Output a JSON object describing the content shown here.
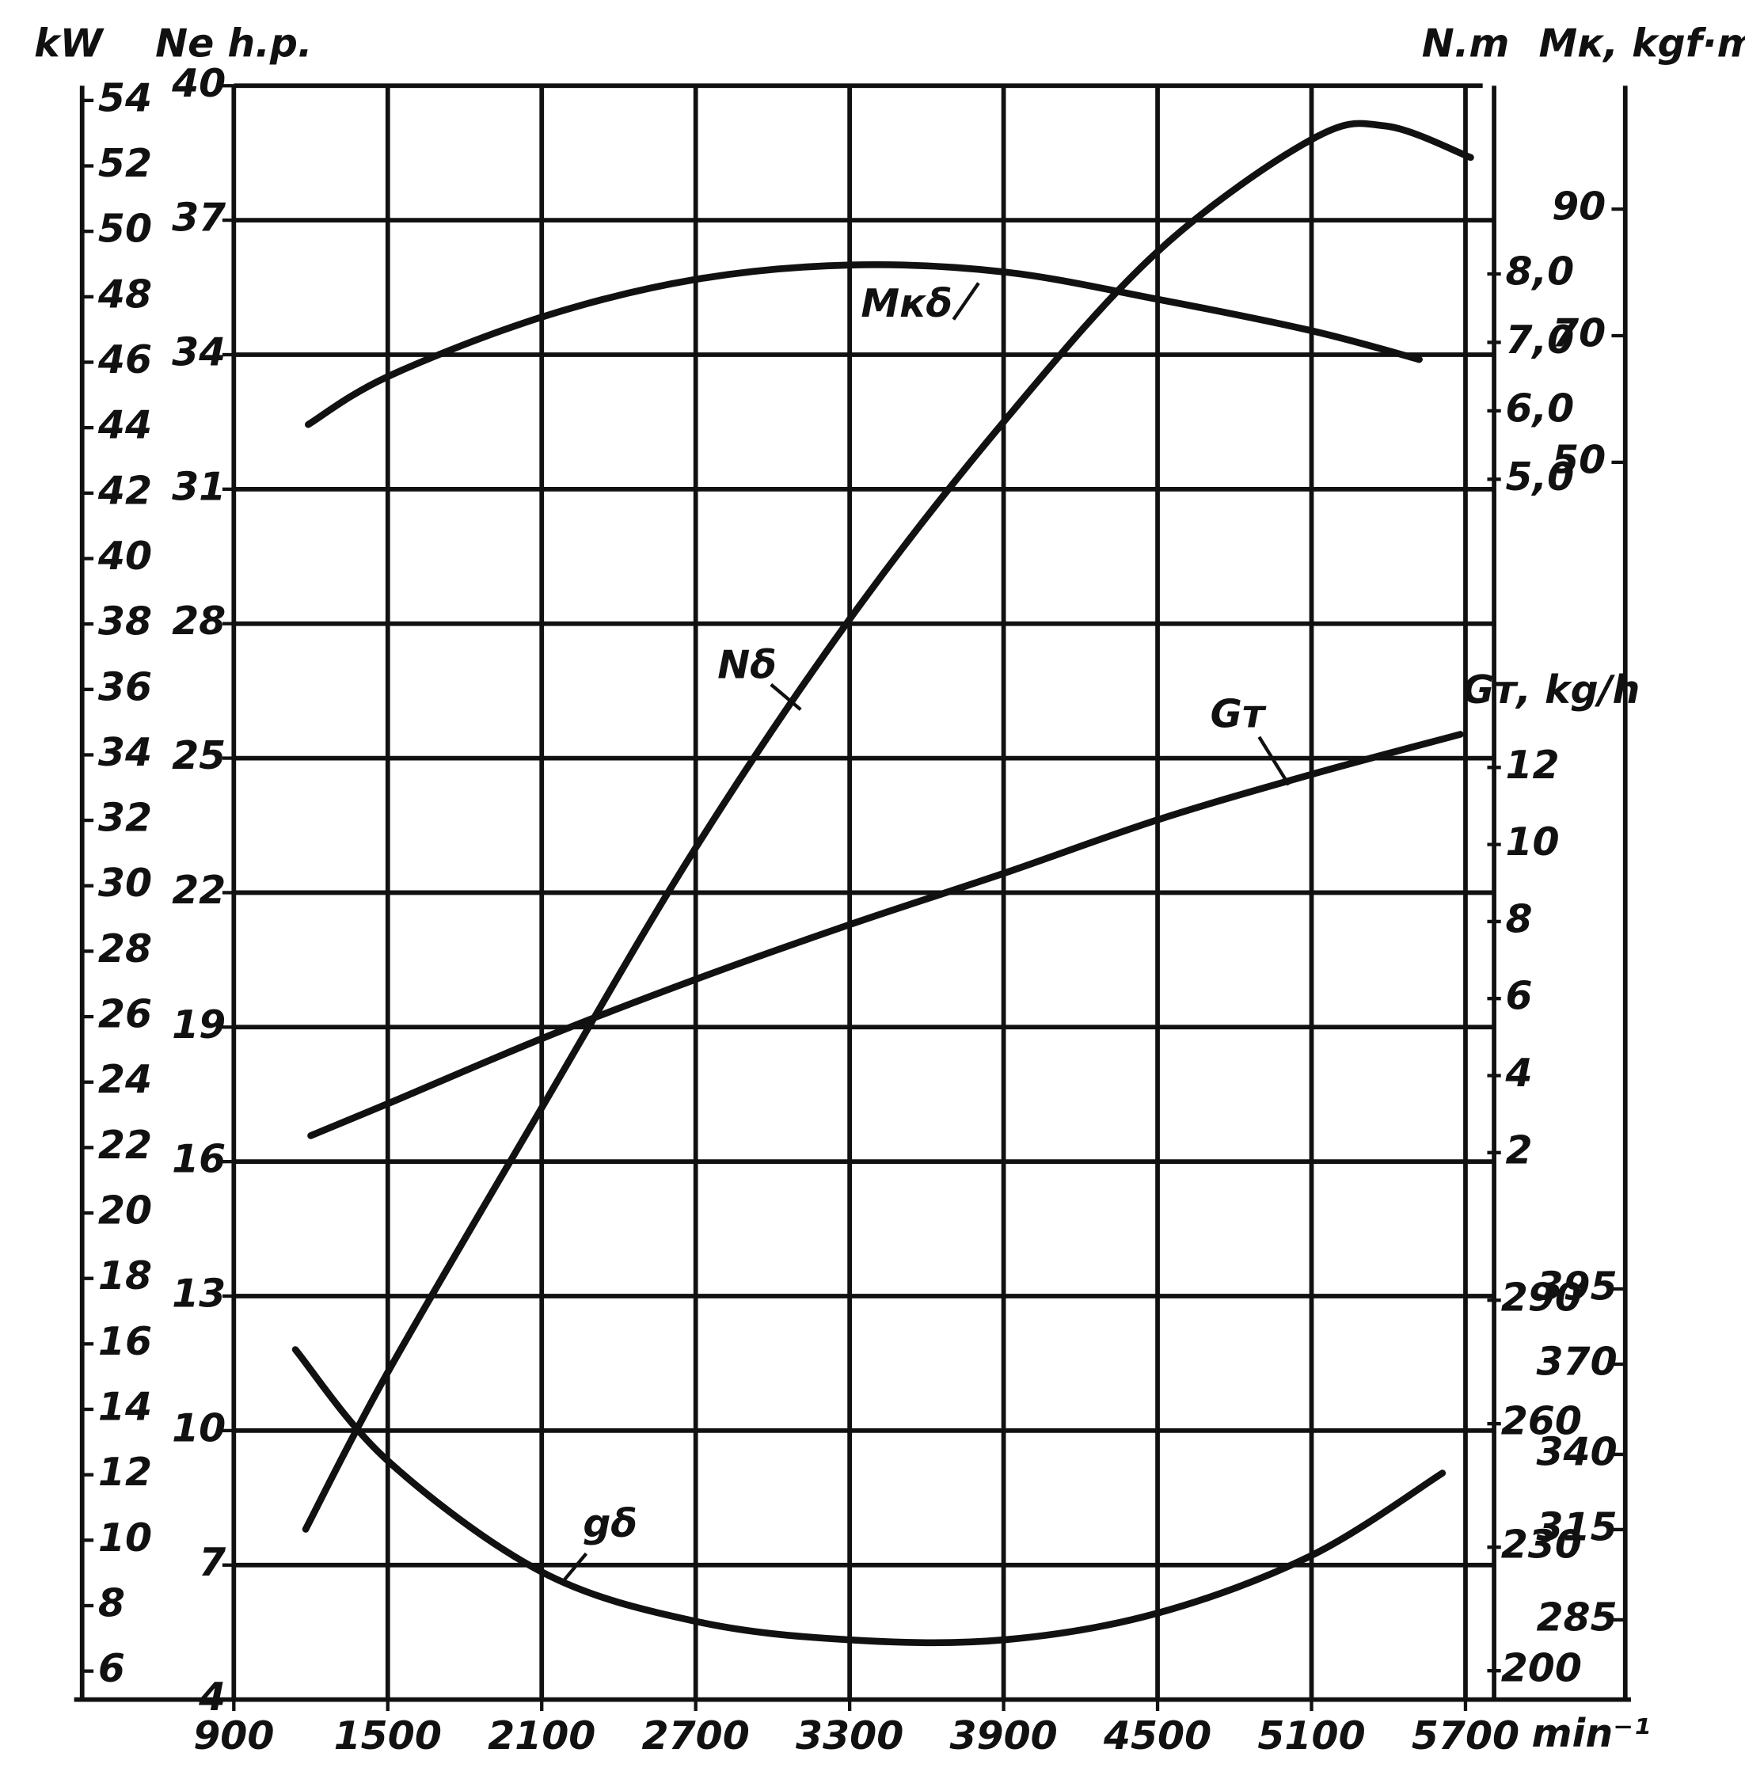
{
  "chart_data": {
    "type": "line",
    "x_label": "min⁻¹",
    "xlim": [
      900,
      5767
    ],
    "xticks": [
      900,
      1500,
      2100,
      2700,
      3300,
      3900,
      4500,
      5100,
      5700
    ],
    "grid": true,
    "color": "#111111",
    "y_axes": [
      {
        "label": "kW",
        "lim": [
          5.13,
          54.45
        ],
        "ticks": [
          6,
          8,
          10,
          12,
          14,
          16,
          18,
          20,
          22,
          24,
          26,
          28,
          30,
          32,
          34,
          36,
          38,
          40,
          42,
          44,
          46,
          48,
          50,
          52,
          54
        ]
      },
      {
        "label": "Ne h.p.",
        "lim": [
          4,
          40
        ],
        "ticks": [
          4,
          7,
          10,
          13,
          16,
          19,
          22,
          25,
          28,
          31,
          34,
          37,
          40
        ]
      },
      {
        "label": "N.m",
        "lim": [
          -12.83,
          10.75
        ],
        "ticks": [
          {
            "value": 5,
            "label": "5,0"
          },
          {
            "value": 6,
            "label": "6,0"
          },
          {
            "value": 7,
            "label": "7,0"
          },
          {
            "value": 8,
            "label": "8,0"
          }
        ]
      },
      {
        "label": "Mк, kgf·m",
        "lim": [
          -145.5,
          109.5
        ],
        "ticks": [
          50,
          70,
          90
        ]
      },
      {
        "label": "Gт, kg/h",
        "lim": [
          -12.2,
          29.7
        ],
        "ticks": [
          2,
          4,
          6,
          8,
          10,
          12
        ]
      },
      {
        "lim": [
          193,
          585
        ],
        "ticks": [
          200,
          230,
          260,
          290
        ]
      },
      {
        "lim": [
          258.5,
          795
        ],
        "ticks": [
          285,
          315,
          340,
          370,
          395
        ]
      }
    ],
    "series": [
      {
        "name": "Mкδ",
        "axis": 2,
        "color": "#111111",
        "x": [
          1190,
          1500,
          2100,
          2700,
          3300,
          3900,
          4500,
          5100,
          5520
        ],
        "values": [
          5.8,
          6.5,
          7.37,
          7.92,
          8.13,
          8.03,
          7.63,
          7.17,
          6.75
        ]
      },
      {
        "name": "Nδ",
        "axis": 1,
        "color": "#111111",
        "x": [
          1180,
          1500,
          2100,
          2700,
          3300,
          3900,
          4500,
          5100,
          5390,
          5720
        ],
        "values": [
          7.8,
          11.3,
          17.2,
          23.0,
          28.1,
          32.5,
          36.3,
          38.8,
          39.1,
          38.4
        ]
      },
      {
        "name": "Gт",
        "axis": 4,
        "color": "#111111",
        "x": [
          1200,
          1500,
          2100,
          2700,
          3300,
          3900,
          4500,
          5100,
          5680
        ],
        "values": [
          2.44,
          3.27,
          4.96,
          6.5,
          7.92,
          9.25,
          10.64,
          11.82,
          12.86
        ]
      },
      {
        "name": "gδ",
        "axis": 5,
        "color": "#111111",
        "x": [
          1140,
          1500,
          2100,
          2700,
          3300,
          3900,
          4500,
          5100,
          5610
        ],
        "values": [
          278,
          251,
          224,
          212,
          207.5,
          207.5,
          214,
          228,
          248
        ]
      }
    ]
  }
}
